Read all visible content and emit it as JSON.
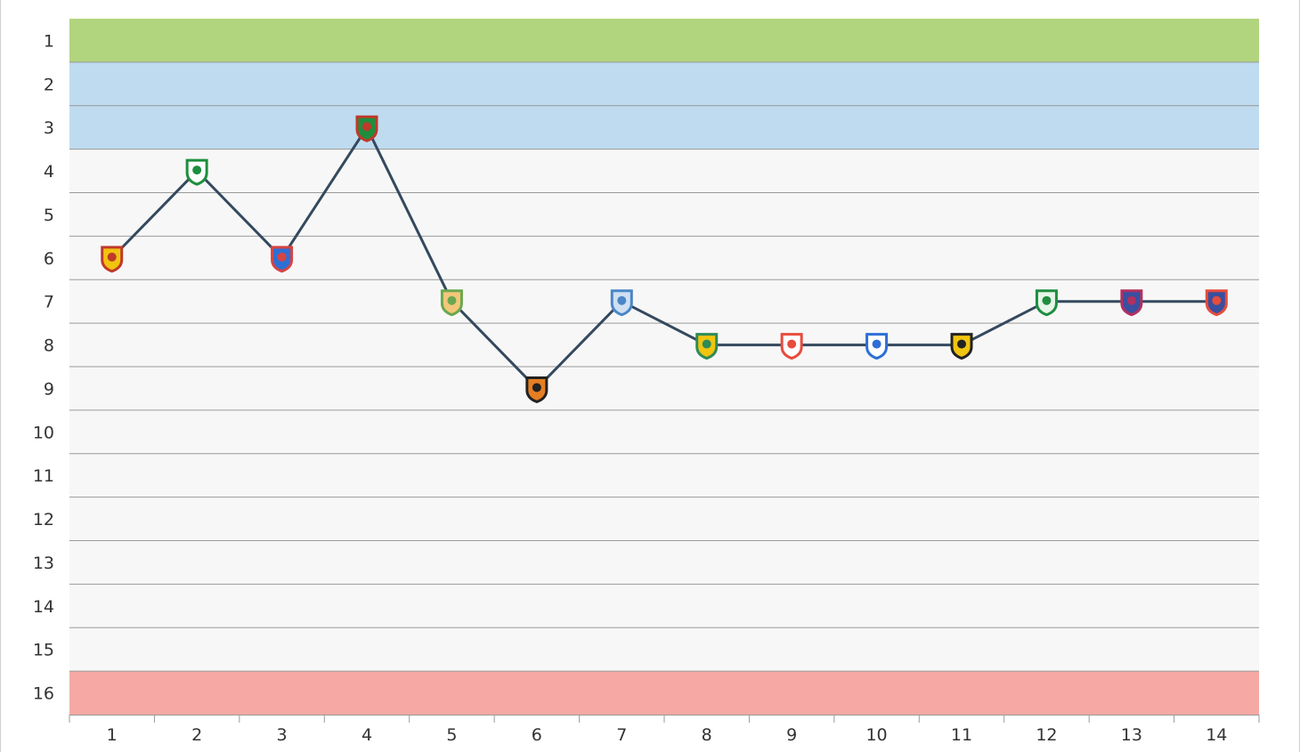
{
  "chart_data": {
    "type": "line",
    "title": "",
    "xlabel": "",
    "ylabel": "",
    "x": [
      1,
      2,
      3,
      4,
      5,
      6,
      7,
      8,
      9,
      10,
      11,
      12,
      13,
      14
    ],
    "y": [
      6,
      4,
      6,
      3,
      7,
      9,
      7,
      8,
      8,
      8,
      8,
      7,
      7,
      7
    ],
    "ylim": [
      1,
      16
    ],
    "y_reversed": true,
    "y_ticks": [
      1,
      2,
      3,
      4,
      5,
      6,
      7,
      8,
      9,
      10,
      11,
      12,
      13,
      14,
      15,
      16
    ],
    "grid": true,
    "line_color": "#34495e",
    "bands": [
      {
        "from": 1,
        "to": 1,
        "color": "#b1d47e"
      },
      {
        "from": 2,
        "to": 3,
        "color": "#bfdbef"
      },
      {
        "from": 16,
        "to": 16,
        "color": "#f5a8a4"
      }
    ],
    "marker_icons": [
      "opponent-crest-icon-red-yellow",
      "opponent-crest-icon-green-white",
      "opponent-crest-icon-red-blue",
      "opponent-crest-icon-red-green",
      "opponent-crest-icon-green-yellow",
      "opponent-crest-icon-black-orange",
      "opponent-crest-icon-blue",
      "opponent-crest-icon-green-yellow-red",
      "opponent-crest-icon-red-flag",
      "opponent-crest-icon-blue-white",
      "opponent-crest-icon-black-gear",
      "opponent-crest-icon-green-circle",
      "opponent-crest-icon-red-blue-shield",
      "opponent-crest-icon-red-blue-triangle"
    ],
    "marker_colors": [
      [
        "#c0392b",
        "#f1c40f"
      ],
      [
        "#1e8e3e",
        "#ffffff"
      ],
      [
        "#d64541",
        "#2e6fd6"
      ],
      [
        "#c0392b",
        "#1e8e3e"
      ],
      [
        "#6aa84f",
        "#f3c77a"
      ],
      [
        "#222222",
        "#e67e22"
      ],
      [
        "#4a86c8",
        "#cfe0f3"
      ],
      [
        "#2e8b57",
        "#f1c40f"
      ],
      [
        "#e74c3c",
        "#ffffff"
      ],
      [
        "#2e6fd6",
        "#ffffff"
      ],
      [
        "#222222",
        "#f1c40f"
      ],
      [
        "#1e8e3e",
        "#e8f5e9"
      ],
      [
        "#b03060",
        "#3a4fa0"
      ],
      [
        "#e74c3c",
        "#3a4fa0"
      ]
    ]
  }
}
